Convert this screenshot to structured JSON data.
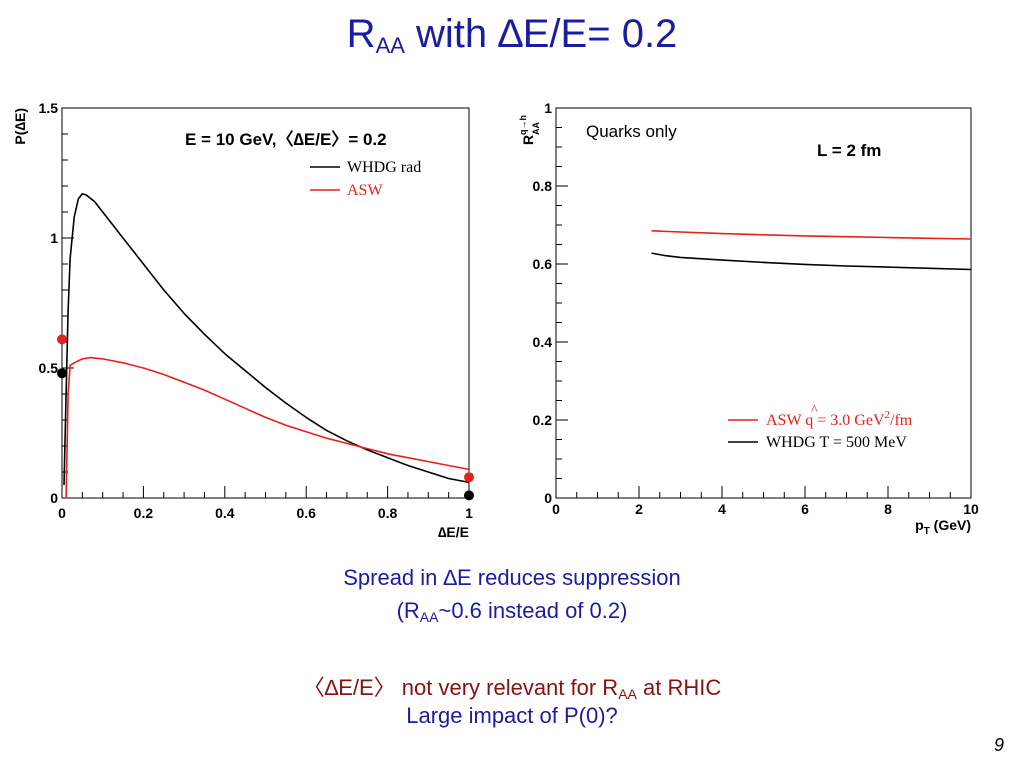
{
  "slide": {
    "title_main": "R",
    "title_sub": "AA",
    "title_rest": " with ∆E/E= 0.2",
    "caption1": "Spread in ∆E reduces suppression",
    "caption2_pre": "(R",
    "caption2_sub": "AA",
    "caption2_post": "~0.6 instead of 0.2)",
    "caption3_pre": "〈∆E/E〉 not very relevant for R",
    "caption3_sub": "AA",
    "caption3_post": " at RHIC",
    "caption4": "Large impact of P(0)?",
    "page_number": "9"
  },
  "chart_data": [
    {
      "type": "line",
      "title": "E = 10 GeV,〈∆E/E〉= 0.2",
      "xlabel": "∆E/E",
      "ylabel": "P(∆E)",
      "xlim": [
        0,
        1
      ],
      "ylim": [
        0,
        1.5
      ],
      "x_ticks": [
        "0",
        "0.2",
        "0.4",
        "0.6",
        "0.8",
        "1"
      ],
      "y_ticks": [
        "0",
        "0.5",
        "1",
        "1.5"
      ],
      "legend_position": "top-right",
      "series": [
        {
          "name": "WHDG rad",
          "color": "#000000",
          "x": [
            0.005,
            0.01,
            0.015,
            0.02,
            0.03,
            0.04,
            0.05,
            0.06,
            0.08,
            0.1,
            0.15,
            0.2,
            0.25,
            0.3,
            0.35,
            0.4,
            0.45,
            0.5,
            0.55,
            0.6,
            0.65,
            0.7,
            0.75,
            0.8,
            0.85,
            0.9,
            0.95,
            1.0
          ],
          "y": [
            0.05,
            0.4,
            0.72,
            0.92,
            1.08,
            1.15,
            1.17,
            1.165,
            1.14,
            1.1,
            1.0,
            0.9,
            0.8,
            0.71,
            0.63,
            0.555,
            0.49,
            0.425,
            0.365,
            0.31,
            0.26,
            0.22,
            0.185,
            0.155,
            0.125,
            0.1,
            0.075,
            0.06
          ]
        },
        {
          "name": "ASW",
          "color": "#e8201c",
          "x": [
            0.01,
            0.015,
            0.02,
            0.03,
            0.05,
            0.07,
            0.1,
            0.15,
            0.2,
            0.25,
            0.3,
            0.35,
            0.4,
            0.45,
            0.5,
            0.55,
            0.6,
            0.65,
            0.7,
            0.75,
            0.8,
            0.85,
            0.9,
            0.95,
            1.0
          ],
          "y": [
            0.0,
            0.4,
            0.51,
            0.52,
            0.535,
            0.54,
            0.535,
            0.52,
            0.5,
            0.475,
            0.445,
            0.415,
            0.38,
            0.345,
            0.31,
            0.28,
            0.255,
            0.23,
            0.21,
            0.19,
            0.17,
            0.155,
            0.14,
            0.125,
            0.11
          ]
        }
      ],
      "points": [
        {
          "x": 0,
          "y": 0.61,
          "color": "#e8201c"
        },
        {
          "x": 0,
          "y": 0.48,
          "color": "#000000"
        },
        {
          "x": 1,
          "y": 0.08,
          "color": "#e8201c"
        },
        {
          "x": 1,
          "y": 0.01,
          "color": "#000000"
        }
      ]
    },
    {
      "type": "line",
      "xlabel": "p",
      "xlabel_sub": "T",
      "xlabel_rest": " (GeV)",
      "ylabel": "R",
      "ylabel_sup": "q→h",
      "ylabel_sub": "AA",
      "xlim": [
        0,
        10
      ],
      "ylim": [
        0,
        1
      ],
      "x_ticks": [
        "0",
        "2",
        "4",
        "6",
        "8",
        "10"
      ],
      "y_ticks": [
        "0",
        "0.2",
        "0.4",
        "0.6",
        "0.8",
        "1"
      ],
      "annotation_1": "Quarks only",
      "annotation_2": "L = 2 fm",
      "legend_position": "bottom-right",
      "series": [
        {
          "name": "ASW",
          "name_qhat": "q",
          "name_rest": " = 3.0 GeV",
          "name_sup": "2",
          "name_end": "/fm",
          "color": "#e8201c",
          "x": [
            2.3,
            3,
            4,
            5,
            6,
            7,
            8,
            9,
            10
          ],
          "y": [
            0.685,
            0.682,
            0.678,
            0.675,
            0.672,
            0.67,
            0.668,
            0.666,
            0.664
          ]
        },
        {
          "name": "WHDG T = 500 MeV",
          "color": "#000000",
          "x": [
            2.3,
            2.6,
            3,
            4,
            5,
            6,
            7,
            8,
            9,
            10
          ],
          "y": [
            0.628,
            0.622,
            0.617,
            0.61,
            0.604,
            0.599,
            0.595,
            0.592,
            0.589,
            0.586
          ]
        }
      ]
    }
  ]
}
